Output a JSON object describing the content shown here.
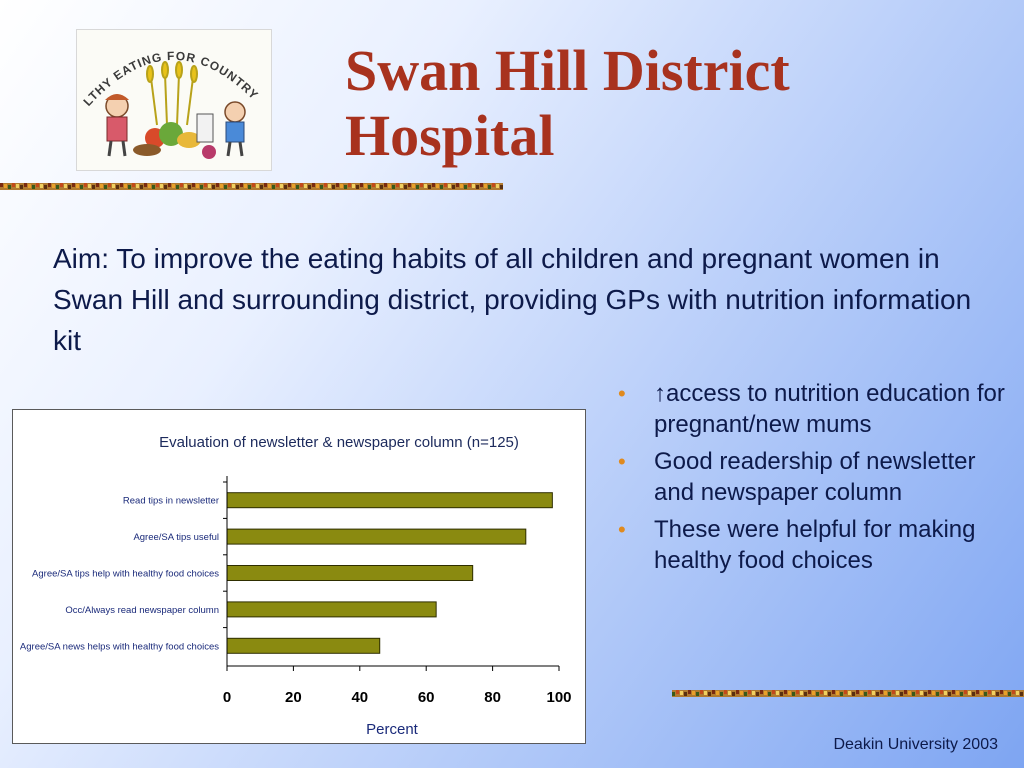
{
  "slide": {
    "title_lines": [
      "Swan Hill District",
      "Hospital"
    ],
    "aim_text": "Aim: To improve the eating habits of all children and pregnant women in Swan Hill and surrounding district, providing GPs with nutrition information kit",
    "bullets": [
      "↑access to nutrition education for pregnant/new mums",
      "Good readership of newsletter and newspaper column",
      "These were helpful for making healthy food choices"
    ],
    "footer": "Deakin University 2003",
    "logo_text": "HEALTHY EATING FOR COUNTRY KIDS"
  },
  "colors": {
    "title": "#a8321e",
    "bullet": "#e08a1e",
    "bar_fill": "#8a8a10",
    "bar_stroke": "#2e2e00",
    "text": "#0d1a4a"
  },
  "chart_data": {
    "type": "bar",
    "orientation": "horizontal",
    "title": "Evaluation of newsletter & newspaper column (n=125)",
    "xlabel": "Percent",
    "ylabel": "",
    "categories": [
      "Read tips in newsletter",
      "Agree/SA tips useful",
      "Agree/SA tips help with healthy food choices",
      "Occ/Always read newspaper column",
      "Agree/SA news helps with healthy food choices"
    ],
    "values": [
      98,
      90,
      74,
      63,
      46
    ],
    "xlim": [
      0,
      100
    ],
    "xticks": [
      0,
      20,
      40,
      60,
      80,
      100
    ],
    "grid": false,
    "legend": "none"
  }
}
